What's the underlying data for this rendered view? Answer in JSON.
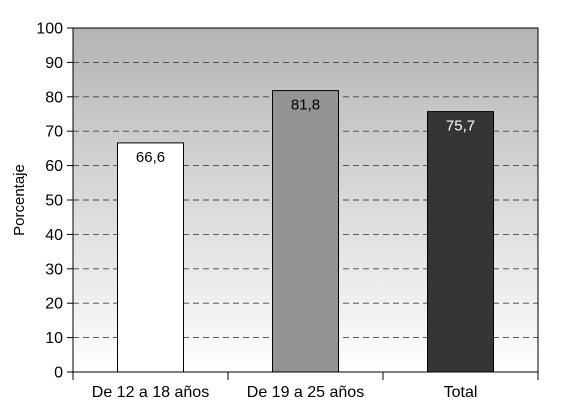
{
  "chart_data": {
    "type": "bar",
    "title": "",
    "xlabel": "",
    "ylabel": "Porcentaje",
    "ylim": [
      0,
      100
    ],
    "yticks": [
      0,
      10,
      20,
      30,
      40,
      50,
      60,
      70,
      80,
      90,
      100
    ],
    "grid": "horizontal dashed",
    "legend": "none",
    "categories": [
      "De 12 a 18 años",
      "De 19 a 25 años",
      "Total"
    ],
    "values": [
      66.6,
      81.8,
      75.7
    ],
    "value_labels": [
      "66,6",
      "81,8",
      "75,7"
    ],
    "bar_colors": [
      "#ffffff",
      "#949494",
      "#353535"
    ],
    "label_colors": [
      "#000000",
      "#000000",
      "#ffffff"
    ],
    "background_gradient": [
      "#b4b4b4",
      "#ffffff"
    ]
  }
}
